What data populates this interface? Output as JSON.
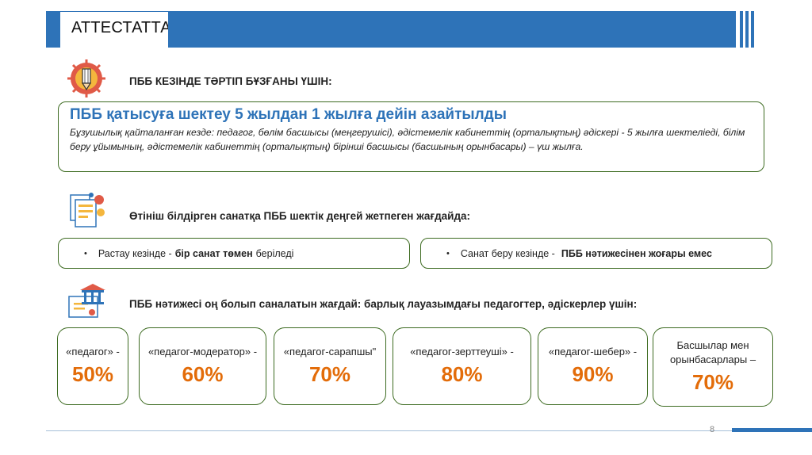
{
  "header": {
    "title": "АТТЕСТАТТАУ"
  },
  "section1": {
    "heading": "ПББ КЕЗІНДЕ ТӘРТІП БҰЗҒАНЫ ҮШІН:",
    "title": "ПББ қатысуға шектеу 5 жылдан 1 жылға дейін азайтылды",
    "body": "Бұзушылық қайталанған кезде: педагог, бөлім басшысы (меңгерушісі), әдістемелік кабинеттің (орталықтың) әдіскері - 5 жылға шектеліеді, білім беру ұйымының, әдістемелік кабинеттің (орталықтың) бірінші басшысы (басшының орынбасары)  – үш жылға."
  },
  "section2": {
    "heading": "Өтініш білдірген санатқа ПББ шектік деңгей жетпеген жағдайда:",
    "left": {
      "bullet": "•",
      "pre": "Растау кезінде - ",
      "bold": "бір санат төмен",
      "post": "беріледі"
    },
    "right": {
      "bullet": "•",
      "pre": "Санат беру кезінде - ",
      "bold": "ПББ нәтижесінен жоғары емес"
    }
  },
  "section3": {
    "heading": "ПББ нәтижесі оң болып саналатын жағдай: барлық лауазымдағы педагогтер, әдіскерлер үшін:",
    "boxes": [
      {
        "label": "«педагог» -",
        "value": "50%"
      },
      {
        "label": "«педагог-модератор» -",
        "value": "60%"
      },
      {
        "label": "«педагог-сарапшы\"",
        "value": "70%"
      },
      {
        "label": "«педагог-зерттеуші» -",
        "value": "80%"
      },
      {
        "label": "«педагог-шебер» -",
        "value": "90%"
      },
      {
        "label": "Басшылар мен орынбасарлары –",
        "value": "70%"
      }
    ]
  },
  "footer": {
    "page": "8"
  },
  "colors": {
    "accent": "#2e73b8",
    "border": "#3d6b21",
    "highlight": "#e36c09"
  },
  "icons": [
    "pencil-badge-icon",
    "documents-icon",
    "certificate-building-icon"
  ]
}
